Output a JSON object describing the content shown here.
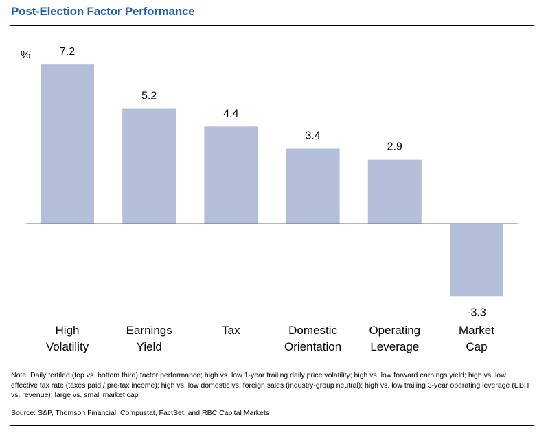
{
  "chart_data": {
    "type": "bar",
    "title": "Post-Election Factor Performance",
    "ylabel": "%",
    "categories": [
      [
        "High",
        "Volatility"
      ],
      [
        "Earnings",
        "Yield"
      ],
      [
        "Tax"
      ],
      [
        "Domestic",
        "Orientation"
      ],
      [
        "Operating",
        "Leverage"
      ],
      [
        "Market",
        "Cap"
      ]
    ],
    "values": [
      7.2,
      5.2,
      4.4,
      3.4,
      2.9,
      -3.3
    ],
    "value_labels": [
      "7.2",
      "5.2",
      "4.4",
      "3.4",
      "2.9",
      "-3.3"
    ],
    "ylim": [
      -3.3,
      7.2
    ],
    "grid": false,
    "bar_color": "#b3bfd9"
  },
  "footer": {
    "note": "Note: Daily tertiled (top vs. bottom third) factor performance; high vs. low 1-year trailing daily price volatility; high vs. low forward earnings yield; high vs. low effective tax rate (taxes paid / pre-tax income); high vs. low domestic vs. foreign sales (industry-group neutral); high vs. low trailing 3-year operating leverage (EBIT vs. revenue); large vs. small market cap",
    "source": "Source: S&P, Thomson Financial, Compustat, FactSet, and RBC Capital Markets"
  }
}
